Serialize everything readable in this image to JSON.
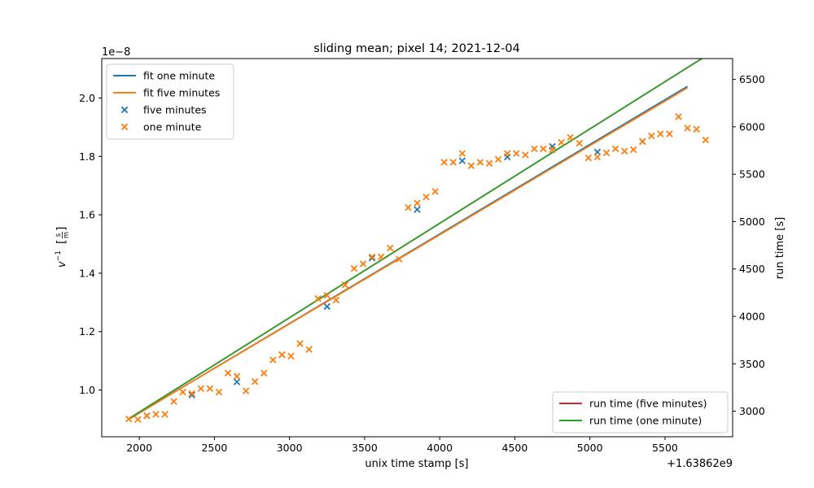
{
  "chart_data": {
    "type": "scatter",
    "title": "sliding mean; pixel 14; 2021-12-04",
    "xlabel": "unix time stamp [s]",
    "ylabel": "v⁻¹ [s/m]",
    "ylabel_main": "v",
    "ylabel_sup": "−1",
    "ylabel_unit_num": "s",
    "ylabel_unit_den": "m",
    "y2label": "run time [s]",
    "x_offset_label": "+1.63862e9",
    "y_scale_label": "1e−8",
    "xlim": [
      1750,
      5950
    ],
    "ylim": [
      0.84,
      2.135
    ],
    "y2lim": [
      2730,
      6720
    ],
    "x_ticks": [
      2000,
      2500,
      3000,
      3500,
      4000,
      4500,
      5000,
      5500
    ],
    "x_tick_labels": [
      "2000",
      "2500",
      "3000",
      "3500",
      "4000",
      "4500",
      "5000",
      "5500"
    ],
    "y_ticks": [
      1.0,
      1.2,
      1.4,
      1.6,
      1.8,
      2.0
    ],
    "y_tick_labels": [
      "1.0",
      "1.2",
      "1.4",
      "1.6",
      "1.8",
      "2.0"
    ],
    "y2_ticks": [
      3000,
      3500,
      4000,
      4500,
      5000,
      5500,
      6000,
      6500
    ],
    "y2_tick_labels": [
      "3000",
      "3500",
      "4000",
      "4500",
      "5000",
      "5500",
      "6000",
      "6500"
    ],
    "grid": false,
    "legend_upper_left": [
      {
        "label": "fit one minute",
        "kind": "line",
        "color": "#1f77b4"
      },
      {
        "label": "fit five minutes",
        "kind": "line",
        "color": "#ff7f0e"
      },
      {
        "label": "five minutes",
        "kind": "marker",
        "color": "#1f77b4"
      },
      {
        "label": "one minute",
        "kind": "marker",
        "color": "#ff7f0e"
      }
    ],
    "legend_lower_right": [
      {
        "label": "run time (five minutes)",
        "kind": "line",
        "color": "#d62728"
      },
      {
        "label": "run time (one minute)",
        "kind": "line",
        "color": "#2ca02c"
      }
    ],
    "lines": [
      {
        "name": "fit one minute",
        "axis": "left",
        "color": "#1f77b4",
        "x": [
          1930,
          5650
        ],
        "y": [
          0.9,
          2.04
        ]
      },
      {
        "name": "fit five minutes",
        "axis": "left",
        "color": "#ff7f0e",
        "x": [
          1930,
          5650
        ],
        "y": [
          0.9,
          2.035
        ]
      },
      {
        "name": "run time (five minutes)",
        "axis": "right",
        "color": "#d62728",
        "x": [
          1930,
          5770
        ],
        "y": [
          2920,
          6745
        ]
      },
      {
        "name": "run time (one minute)",
        "axis": "right",
        "color": "#2ca02c",
        "x": [
          1930,
          5770
        ],
        "y": [
          2920,
          6745
        ]
      }
    ],
    "scatter_series": [
      {
        "name": "five minutes",
        "color": "#1f77b4",
        "x": [
          2050,
          2350,
          2650,
          2950,
          3250,
          3550,
          3850,
          4150,
          4450,
          4750,
          5050,
          5350
        ],
        "y": [
          0.912,
          0.983,
          1.028,
          1.121,
          1.286,
          1.452,
          1.618,
          1.785,
          1.798,
          1.834,
          1.815,
          1.851
        ]
      },
      {
        "name": "one minute",
        "color": "#ff7f0e",
        "x": [
          1930,
          1990,
          2050,
          2110,
          2170,
          2230,
          2290,
          2350,
          2410,
          2470,
          2530,
          2590,
          2650,
          2710,
          2770,
          2830,
          2890,
          2950,
          3010,
          3070,
          3130,
          3190,
          3250,
          3310,
          3370,
          3430,
          3490,
          3550,
          3610,
          3670,
          3730,
          3790,
          3850,
          3910,
          3970,
          4030,
          4090,
          4150,
          4210,
          4270,
          4330,
          4390,
          4450,
          4510,
          4570,
          4630,
          4690,
          4750,
          4810,
          4870,
          4930,
          4990,
          5050,
          5110,
          5170,
          5230,
          5290,
          5350,
          5410,
          5470,
          5530,
          5590,
          5650,
          5710,
          5770
        ],
        "y": [
          0.901,
          0.899,
          0.912,
          0.917,
          0.917,
          0.961,
          0.993,
          0.988,
          1.005,
          1.005,
          0.993,
          1.058,
          1.047,
          0.997,
          1.029,
          1.058,
          1.103,
          1.121,
          1.116,
          1.159,
          1.139,
          1.313,
          1.324,
          1.308,
          1.36,
          1.416,
          1.432,
          1.456,
          1.456,
          1.486,
          1.448,
          1.625,
          1.64,
          1.661,
          1.68,
          1.78,
          1.78,
          1.81,
          1.768,
          1.78,
          1.776,
          1.79,
          1.81,
          1.81,
          1.805,
          1.826,
          1.826,
          1.823,
          1.848,
          1.865,
          1.845,
          1.795,
          1.798,
          1.812,
          1.826,
          1.818,
          1.823,
          1.851,
          1.87,
          1.877,
          1.877,
          1.936,
          1.897,
          1.893,
          1.856
        ]
      }
    ]
  }
}
